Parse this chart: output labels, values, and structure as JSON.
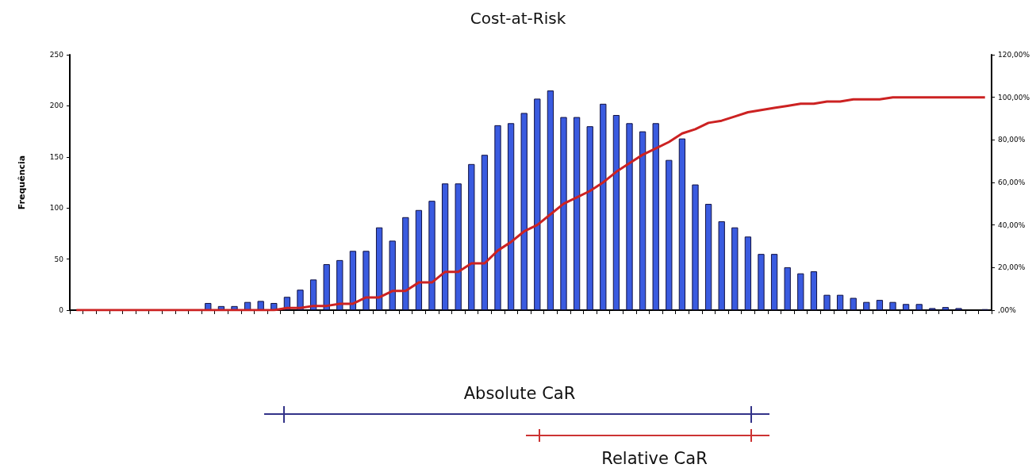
{
  "chart_data": {
    "type": "bar",
    "title": "Cost-at-Risk",
    "ylabel": "Frequência",
    "categories": [
      null,
      null,
      null,
      null,
      null,
      null,
      null,
      null,
      null,
      null,
      null,
      null,
      null,
      null,
      null,
      null,
      null,
      null,
      null,
      null,
      null,
      null,
      null,
      null,
      null,
      null,
      null,
      null,
      null,
      null,
      null,
      null,
      null,
      null,
      null,
      null,
      null,
      null,
      null,
      null,
      null,
      null,
      null,
      null,
      null,
      null,
      null,
      null,
      null,
      null,
      null,
      null,
      null,
      null,
      null,
      null,
      null,
      null,
      null,
      null,
      null,
      null,
      null,
      null,
      null,
      null,
      null,
      null,
      null,
      null
    ],
    "series": [
      {
        "color": "#3a5be0",
        "values": [
          0,
          0,
          0,
          0,
          0,
          0,
          0,
          0,
          0,
          0,
          7,
          4,
          4,
          8,
          9,
          7,
          13,
          20,
          30,
          45,
          49,
          58,
          58,
          81,
          68,
          91,
          98,
          107,
          124,
          124,
          143,
          152,
          181,
          183,
          193,
          207,
          215,
          189,
          189,
          180,
          202,
          191,
          183,
          175,
          183,
          147,
          168,
          123,
          104,
          87,
          81,
          72,
          55,
          55,
          42,
          36,
          38,
          15,
          15,
          12,
          8,
          10,
          8,
          6,
          6,
          2,
          3,
          2,
          0,
          1
        ]
      },
      {
        "type": "line",
        "axis": "y2",
        "color": "#cc2222",
        "values": [
          0,
          0,
          0,
          0,
          0,
          0,
          0,
          0,
          0,
          0,
          0,
          0,
          0,
          0,
          0,
          0,
          1,
          1,
          2,
          2,
          3,
          3,
          6,
          6,
          9,
          9,
          13,
          13,
          18,
          18,
          22,
          22,
          28,
          32,
          37,
          40,
          45,
          50,
          53,
          56,
          60,
          65,
          69,
          73,
          76,
          79,
          83,
          85,
          88,
          89,
          91,
          93,
          94,
          95,
          96,
          97,
          97,
          98,
          98,
          99,
          99,
          99,
          100,
          100,
          100,
          100,
          100,
          100,
          100,
          100
        ]
      }
    ],
    "ylim": [
      0,
      250
    ],
    "yticks": [
      0,
      50,
      100,
      150,
      200,
      250
    ],
    "y2lim": [
      0,
      120
    ],
    "y2ticks": [
      {
        "value": 0,
        "label": ",00%"
      },
      {
        "value": 20,
        "label": "20,00%"
      },
      {
        "value": 40,
        "label": "40,00%"
      },
      {
        "value": 60,
        "label": "60,00%"
      },
      {
        "value": 80,
        "label": "80,00%"
      },
      {
        "value": 100,
        "label": "100,00%"
      },
      {
        "value": 120,
        "label": "120,00%"
      }
    ],
    "annotations": [
      "Absolute CaR",
      "Relative CaR"
    ],
    "grid": false
  }
}
